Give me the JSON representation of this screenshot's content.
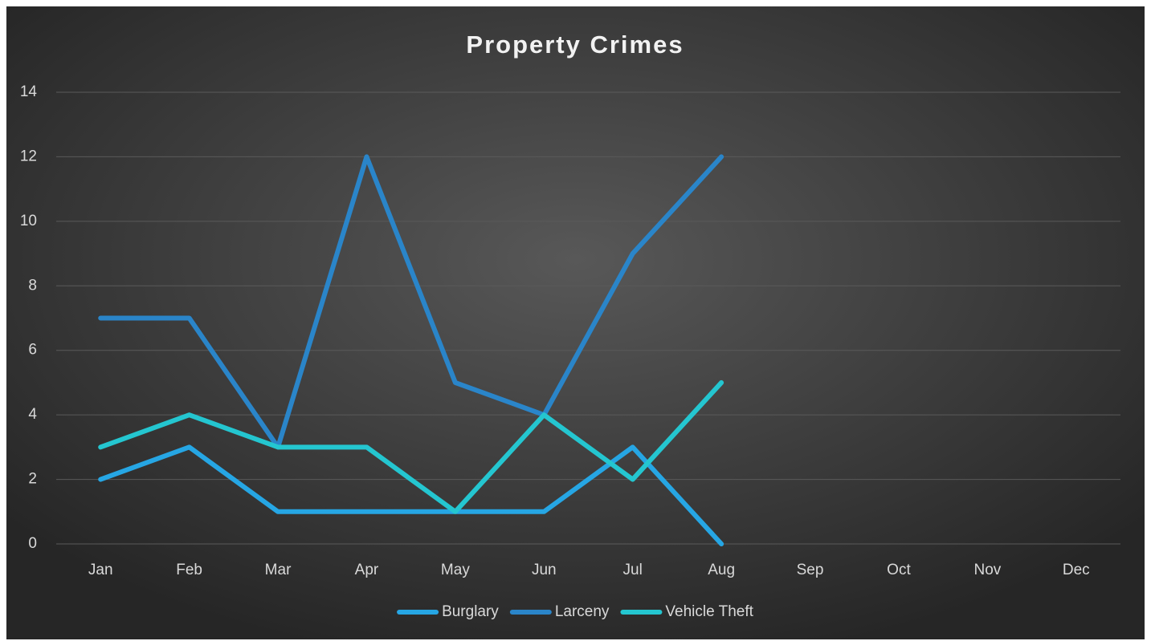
{
  "chart_data": {
    "type": "line",
    "title": "Property Crimes",
    "categories": [
      "Jan",
      "Feb",
      "Mar",
      "Apr",
      "May",
      "Jun",
      "Jul",
      "Aug",
      "Sep",
      "Oct",
      "Nov",
      "Dec"
    ],
    "series": [
      {
        "name": "Burglary",
        "color": "#26a6e4",
        "values": [
          2,
          3,
          1,
          1,
          1,
          1,
          3,
          0,
          null,
          null,
          null,
          null
        ]
      },
      {
        "name": "Larceny",
        "color": "#2a85c9",
        "values": [
          7,
          7,
          3,
          12,
          5,
          4,
          9,
          12,
          null,
          null,
          null,
          null
        ]
      },
      {
        "name": "Vehicle Theft",
        "color": "#24c6d0",
        "values": [
          3,
          4,
          3,
          3,
          1,
          4,
          2,
          5,
          null,
          null,
          null,
          null
        ]
      }
    ],
    "ylim": [
      0,
      14
    ],
    "yticks": [
      0,
      2,
      4,
      6,
      8,
      10,
      12,
      14
    ],
    "grid": true,
    "legend": "bottom"
  }
}
